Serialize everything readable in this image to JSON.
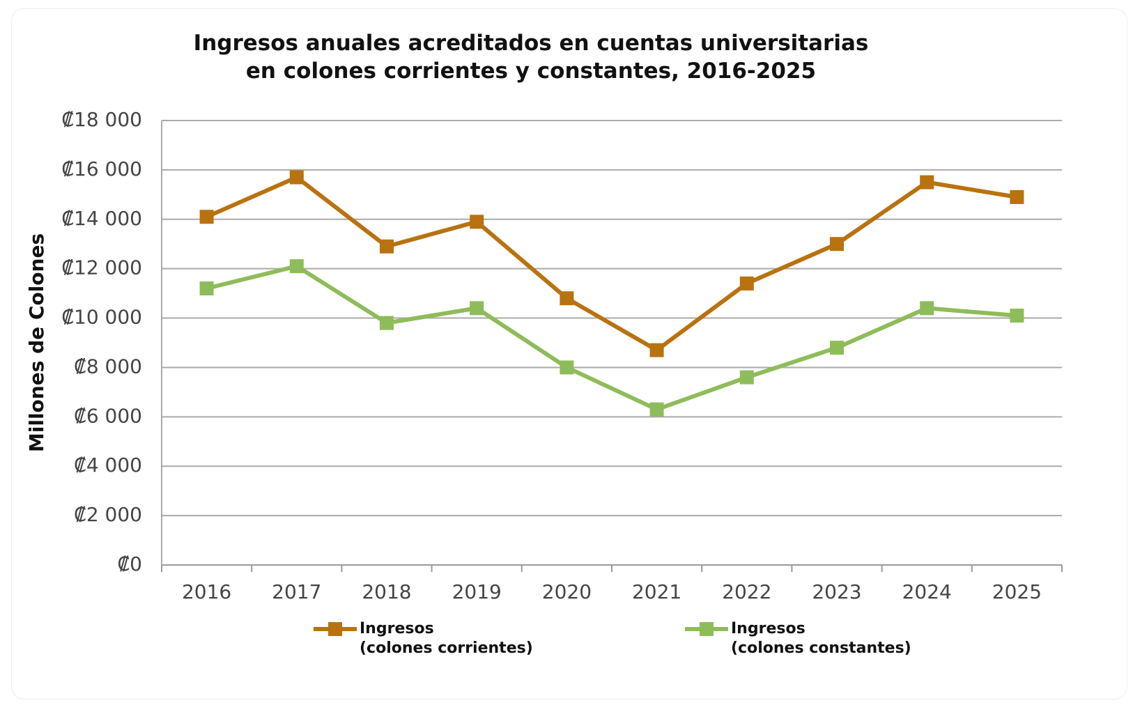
{
  "chart_data": {
    "type": "line",
    "title": "Ingresos anuales acreditados en cuentas universitarias\nen colones corrientes y constantes, 2016-2025",
    "y_label": "Millones de Colones",
    "categories": [
      "2016",
      "2017",
      "2018",
      "2019",
      "2020",
      "2021",
      "2022",
      "2023",
      "2024",
      "2025"
    ],
    "series": [
      {
        "name": "Ingresos\n(colones corrientes)",
        "color": "#b8720f",
        "values": [
          14100,
          15700,
          12900,
          13900,
          10800,
          8700,
          11400,
          13000,
          15500,
          14900
        ]
      },
      {
        "name": "Ingresos\n(colones constantes)",
        "color": "#8fbc5a",
        "values": [
          11200,
          12100,
          9800,
          10400,
          8000,
          6300,
          7600,
          8800,
          10400,
          10100
        ]
      }
    ],
    "ylim": [
      0,
      18000
    ],
    "yticks": [
      {
        "value": 0,
        "label": "₡0"
      },
      {
        "value": 2000,
        "label": "₡2 000"
      },
      {
        "value": 4000,
        "label": "₡4 000"
      },
      {
        "value": 6000,
        "label": "₡6 000"
      },
      {
        "value": 8000,
        "label": "₡8 000"
      },
      {
        "value": 10000,
        "label": "₡10 000"
      },
      {
        "value": 12000,
        "label": "₡12 000"
      },
      {
        "value": 14000,
        "label": "₡14 000"
      },
      {
        "value": 16000,
        "label": "₡16 000"
      },
      {
        "value": 18000,
        "label": "₡18 000"
      }
    ],
    "grid": true,
    "legend": "bottom"
  }
}
